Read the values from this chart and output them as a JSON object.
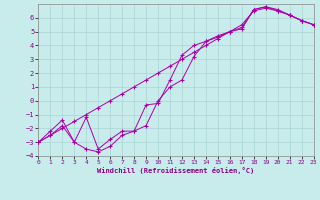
{
  "xlabel": "Windchill (Refroidissement éolien,°C)",
  "bg_color": "#c8ecec",
  "grid_color": "#aad4d4",
  "line_color": "#aa00aa",
  "xlim": [
    0,
    23
  ],
  "ylim": [
    -4,
    7
  ],
  "xticks": [
    0,
    1,
    2,
    3,
    4,
    5,
    6,
    7,
    8,
    9,
    10,
    11,
    12,
    13,
    14,
    15,
    16,
    17,
    18,
    19,
    20,
    21,
    22,
    23
  ],
  "yticks": [
    -4,
    -3,
    -2,
    -1,
    0,
    1,
    2,
    3,
    4,
    5,
    6
  ],
  "series": [
    {
      "x": [
        0,
        1,
        2,
        3,
        4,
        5,
        6,
        7,
        8,
        9,
        10,
        11,
        12,
        13,
        14,
        15,
        16,
        17,
        18,
        19,
        20,
        21,
        22,
        23
      ],
      "y": [
        -3.0,
        -2.5,
        -2.0,
        -1.5,
        -1.0,
        -0.5,
        0.0,
        0.5,
        1.0,
        1.5,
        2.0,
        2.5,
        3.0,
        3.5,
        4.0,
        4.5,
        5.0,
        5.5,
        6.5,
        6.7,
        6.5,
        6.2,
        5.8,
        5.5
      ]
    },
    {
      "x": [
        0,
        1,
        2,
        3,
        4,
        5,
        6,
        7,
        8,
        9,
        10,
        11,
        12,
        13,
        14,
        15,
        16,
        17,
        18,
        19,
        20,
        21,
        22,
        23
      ],
      "y": [
        -3.0,
        -2.5,
        -1.8,
        -3.0,
        -3.5,
        -3.7,
        -3.3,
        -2.5,
        -2.2,
        -1.8,
        0.0,
        1.0,
        1.5,
        3.2,
        4.3,
        4.6,
        5.0,
        5.2,
        6.6,
        6.8,
        6.5,
        6.2,
        5.8,
        5.5
      ]
    },
    {
      "x": [
        0,
        1,
        2,
        3,
        4,
        5,
        6,
        7,
        8,
        9,
        10,
        11,
        12,
        13,
        14,
        15,
        16,
        17,
        18,
        19,
        20,
        21,
        22,
        23
      ],
      "y": [
        -3.0,
        -2.2,
        -1.4,
        -3.0,
        -1.2,
        -3.5,
        -2.8,
        -2.2,
        -2.2,
        -0.3,
        -0.2,
        1.5,
        3.3,
        4.0,
        4.3,
        4.7,
        5.0,
        5.3,
        6.6,
        6.8,
        6.6,
        6.2,
        5.8,
        5.5
      ]
    }
  ]
}
